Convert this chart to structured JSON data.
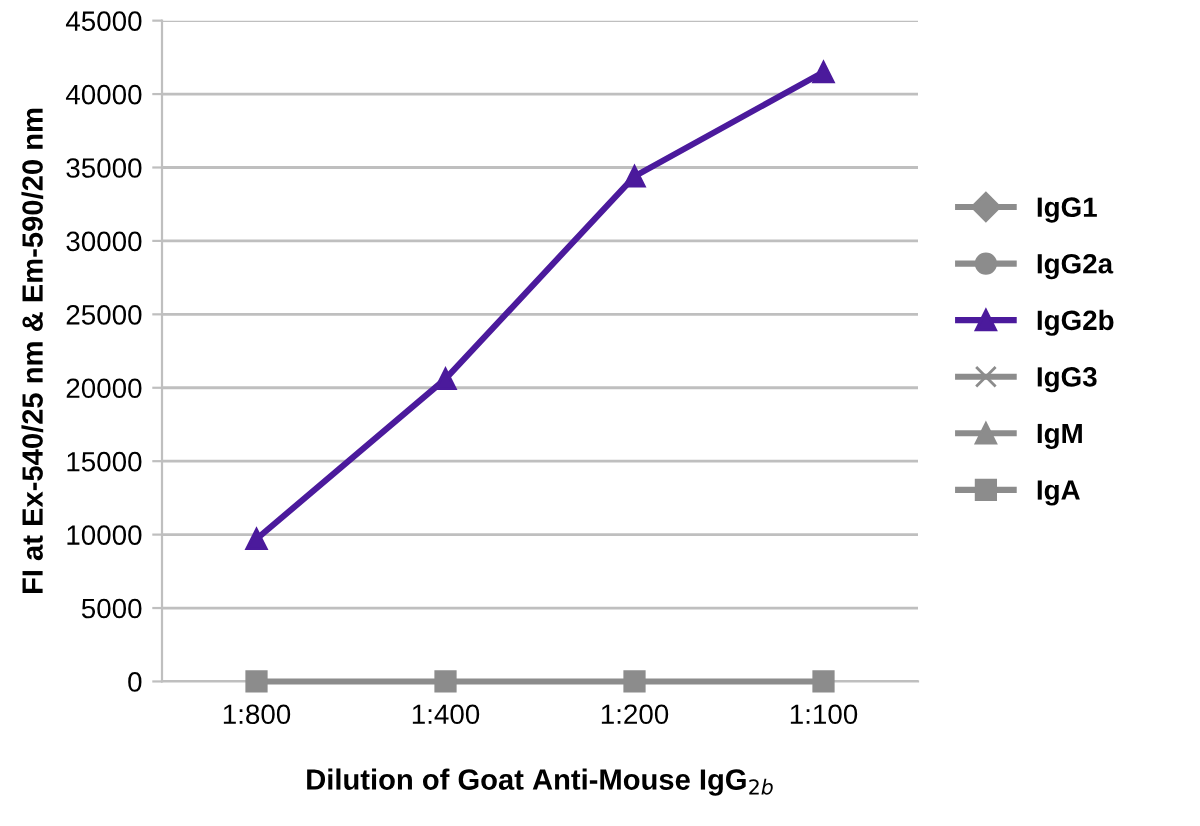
{
  "chart_data": {
    "type": "line",
    "xlabel": "Dilution of Goat Anti-Mouse IgG$_{2b}$",
    "ylabel": "FI at Ex-540/25 nm & Em-590/20 nm",
    "categories": [
      "1:800",
      "1:400",
      "1:200",
      "1:100"
    ],
    "series": [
      {
        "name": "IgG1",
        "color": "#8c8c8c",
        "marker": "diamond",
        "values": [
          null,
          null,
          null,
          null
        ]
      },
      {
        "name": "IgG2a",
        "color": "#8c8c8c",
        "marker": "circle",
        "values": [
          null,
          null,
          null,
          null
        ]
      },
      {
        "name": "IgG2b",
        "color": "#4b1a9c",
        "marker": "triangle",
        "values": [
          9700,
          20600,
          34400,
          41500
        ]
      },
      {
        "name": "IgG3",
        "color": "#8c8c8c",
        "marker": "cross",
        "values": [
          null,
          null,
          null,
          null
        ]
      },
      {
        "name": "IgM",
        "color": "#8c8c8c",
        "marker": "triangle",
        "values": [
          null,
          null,
          null,
          null
        ]
      },
      {
        "name": "IgA",
        "color": "#8c8c8c",
        "marker": "square",
        "values": [
          0,
          0,
          0,
          0
        ]
      }
    ],
    "ylim": [
      0,
      45000
    ],
    "yticks": [
      0,
      5000,
      10000,
      15000,
      20000,
      25000,
      30000,
      35000,
      40000,
      45000
    ],
    "grid": "y",
    "legend": "right",
    "line_style": "solid"
  }
}
